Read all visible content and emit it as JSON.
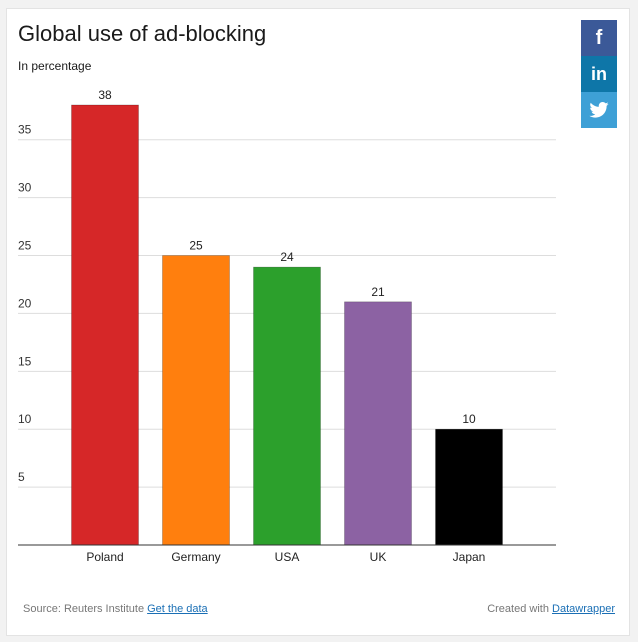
{
  "title": "Global use of ad-blocking",
  "subtitle": "In percentage",
  "share": {
    "facebook_glyph": "f",
    "linkedin_glyph": "in"
  },
  "footer": {
    "source_label": "Source: Reuters Institute",
    "get_data_label": "Get the data",
    "created_with_label": "Created with",
    "datawrapper_label": "Datawrapper"
  },
  "chart_data": {
    "type": "bar",
    "title": "Global use of ad-blocking",
    "subtitle": "In percentage",
    "xlabel": "",
    "ylabel": "",
    "ylim": [
      0,
      38
    ],
    "yticks": [
      5,
      10,
      15,
      20,
      25,
      30,
      35
    ],
    "grid": true,
    "categories": [
      "Poland",
      "Germany",
      "USA",
      "UK",
      "Japan"
    ],
    "values": [
      38,
      25,
      24,
      21,
      10
    ],
    "colors": [
      "#d62728",
      "#ff7f0e",
      "#2ca02c",
      "#8c62a3",
      "#000000"
    ]
  }
}
